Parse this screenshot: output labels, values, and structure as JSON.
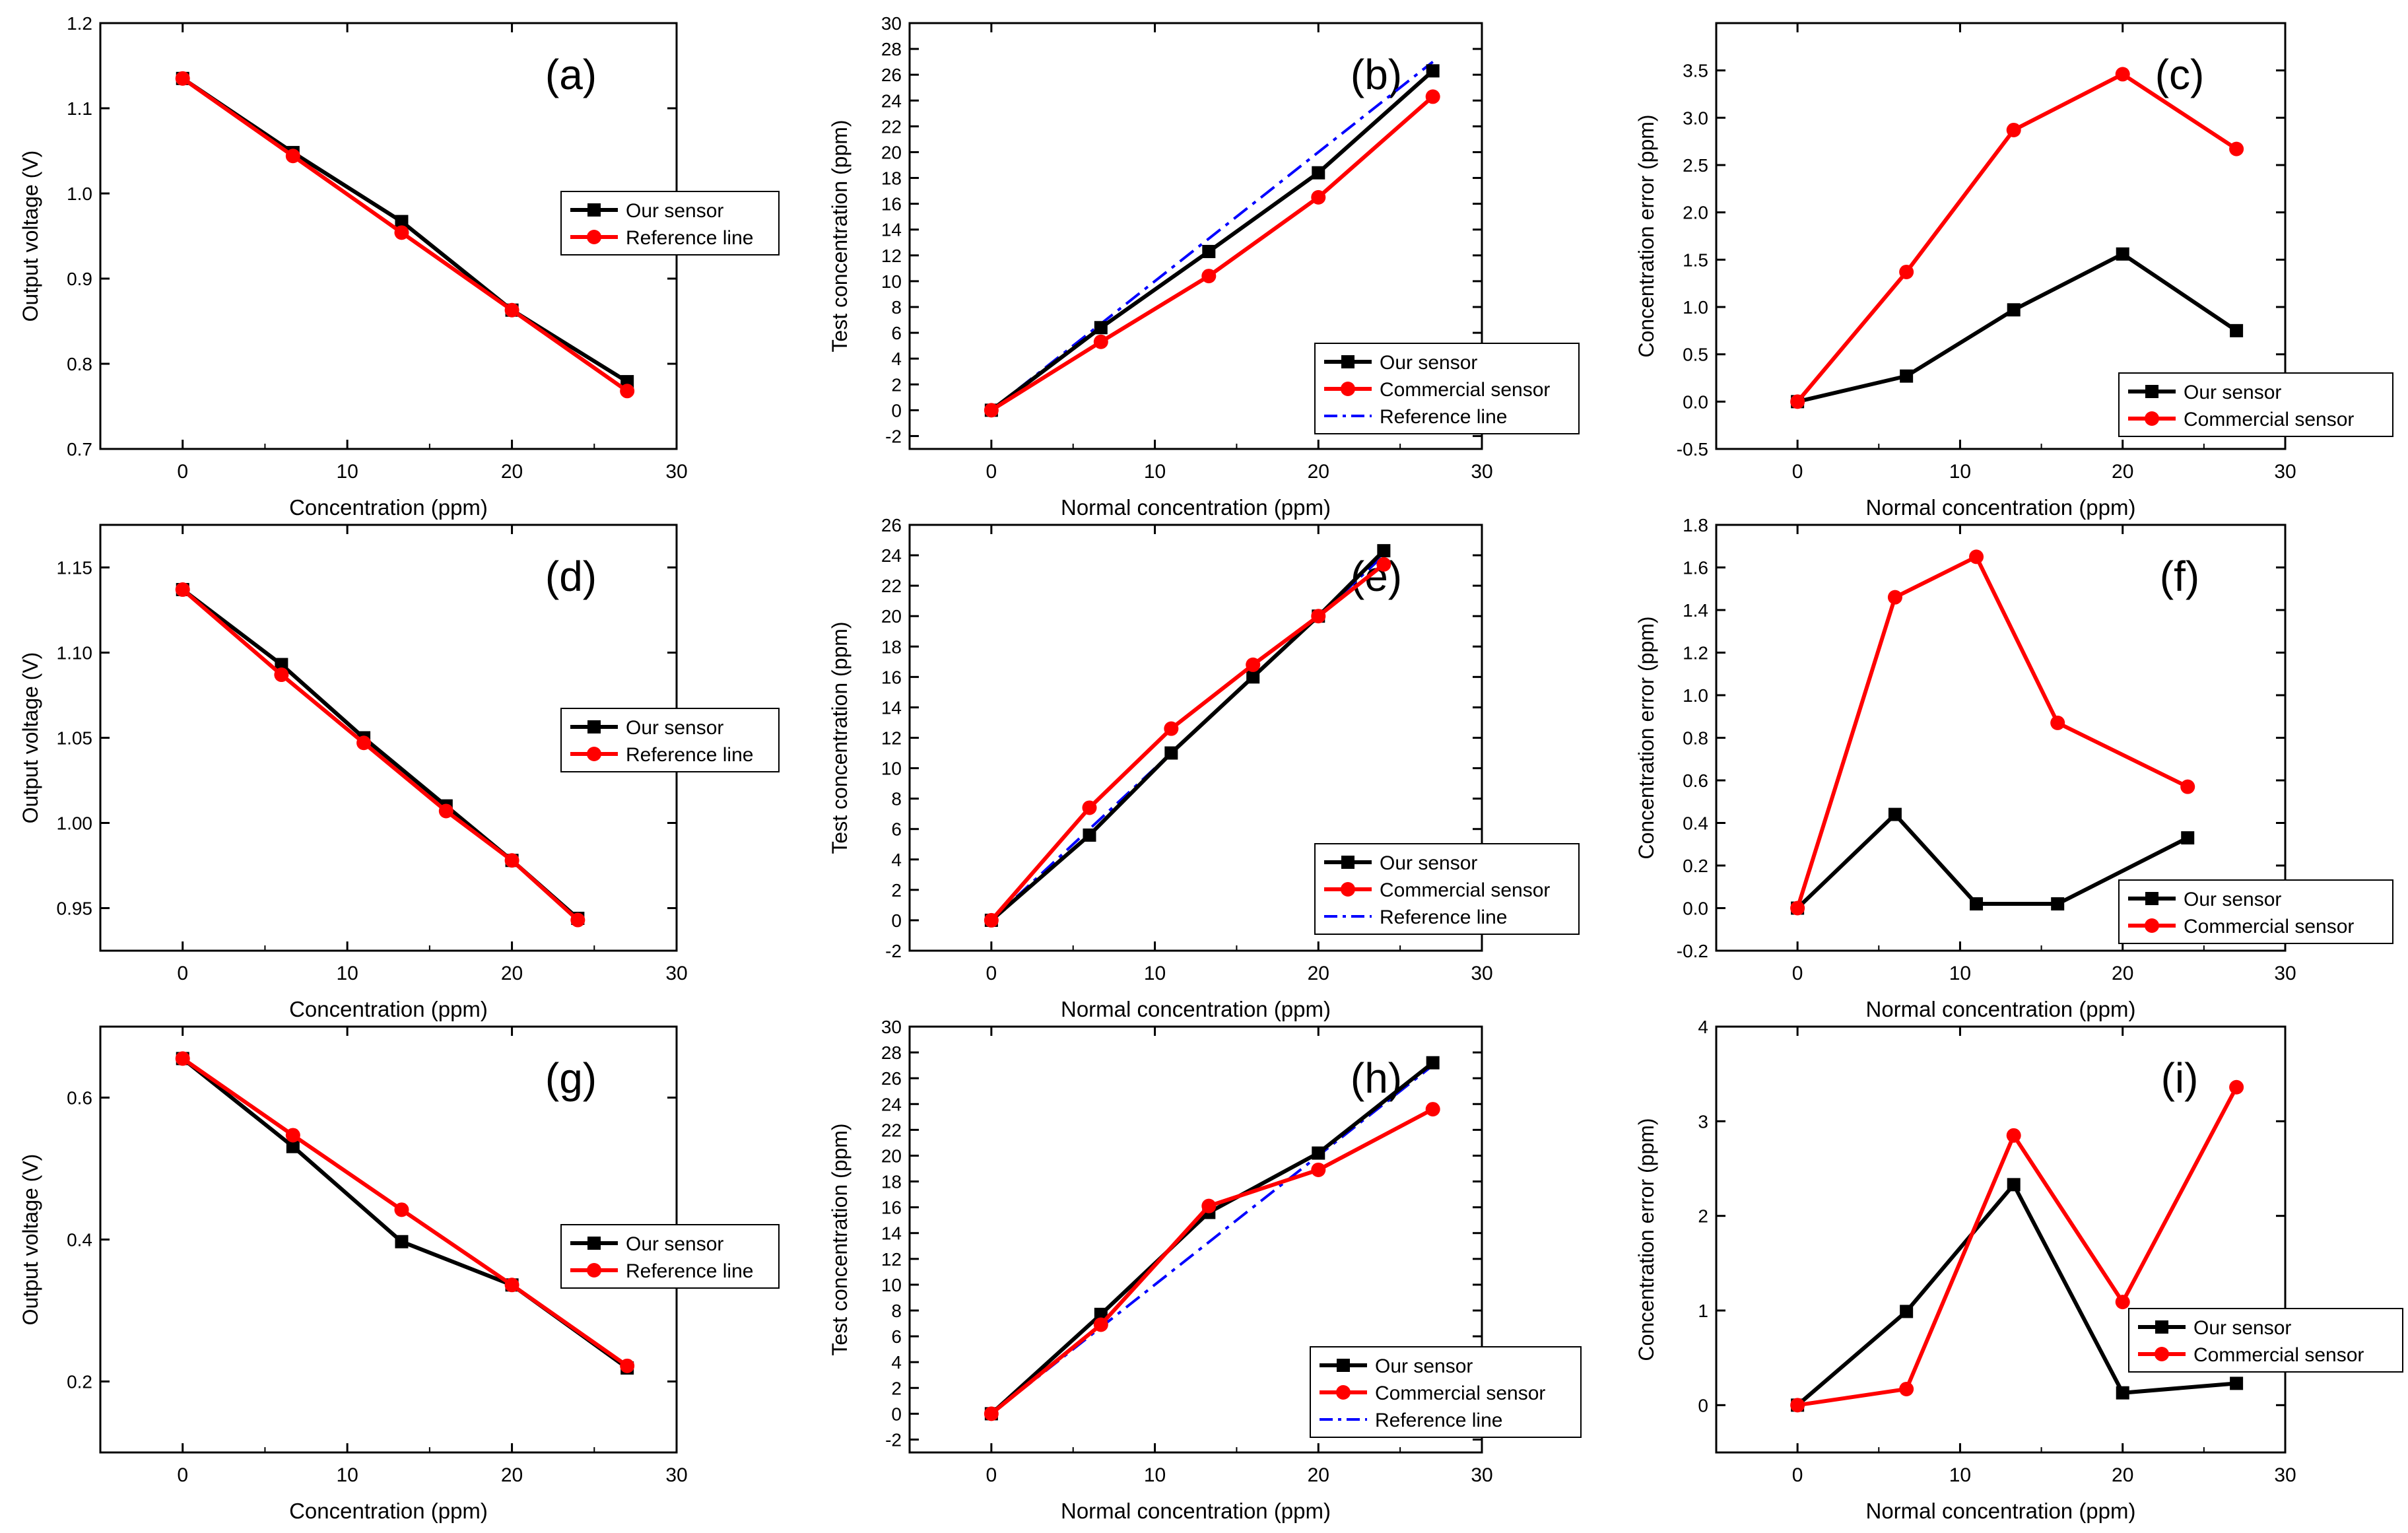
{
  "colors": {
    "black": "#000000",
    "red": "#ff0000",
    "blue": "#0000ff"
  },
  "chart_data": [
    {
      "type": "line",
      "panel": "(a)",
      "xlabel": "Concentration (ppm)",
      "ylabel": "Output voltage (V)",
      "xlim": [
        -5,
        30
      ],
      "ylim": [
        0.7,
        1.2
      ],
      "xticks": [
        "0",
        "10",
        "20",
        "30"
      ],
      "yticks": [
        "0.7",
        "0.8",
        "0.9",
        "1.0",
        "1.1",
        "1.2"
      ],
      "legend": "right",
      "series": [
        {
          "name": "Our sensor",
          "color": "#000000",
          "marker": "square",
          "x": [
            0,
            6.7,
            13.3,
            20,
            27
          ],
          "y": [
            1.135,
            1.048,
            0.967,
            0.863,
            0.779
          ]
        },
        {
          "name": "Reference line",
          "color": "#ff0000",
          "marker": "circle",
          "x": [
            0,
            6.7,
            13.3,
            20,
            27
          ],
          "y": [
            1.135,
            1.044,
            0.954,
            0.863,
            0.768
          ]
        }
      ]
    },
    {
      "type": "line",
      "panel": "(b)",
      "xlabel": "Normal concentration (ppm)",
      "ylabel": "Test concentration (ppm)",
      "xlim": [
        -5,
        30
      ],
      "ylim": [
        -3,
        30
      ],
      "xticks": [
        "0",
        "10",
        "20",
        "30"
      ],
      "yticks": [
        "-2",
        "0",
        "2",
        "4",
        "6",
        "8",
        "10",
        "12",
        "14",
        "16",
        "18",
        "20",
        "22",
        "24",
        "26",
        "28",
        "30"
      ],
      "legend": "bottom-right",
      "series": [
        {
          "name": "Our sensor",
          "color": "#000000",
          "marker": "square",
          "x": [
            0,
            6.7,
            13.3,
            20,
            27
          ],
          "y": [
            0,
            6.4,
            12.3,
            18.4,
            26.3
          ]
        },
        {
          "name": "Commercial sensor",
          "color": "#ff0000",
          "marker": "circle",
          "x": [
            0,
            6.7,
            13.3,
            20,
            27
          ],
          "y": [
            0,
            5.3,
            10.4,
            16.5,
            24.3
          ]
        },
        {
          "name": "Reference line",
          "color": "#0000ff",
          "dash": "dashdot",
          "x": [
            0,
            6.7,
            13.3,
            20,
            27
          ],
          "y": [
            0,
            6.7,
            13.3,
            20,
            27
          ]
        }
      ]
    },
    {
      "type": "line",
      "panel": "(c)",
      "xlabel": "Normal concentration (ppm)",
      "ylabel": "Concentration error (ppm)",
      "xlim": [
        -5,
        30
      ],
      "ylim": [
        -0.5,
        4.0
      ],
      "xticks": [
        "0",
        "10",
        "20",
        "30"
      ],
      "yticks": [
        "-0.5",
        "0.0",
        "0.5",
        "1.0",
        "1.5",
        "2.0",
        "2.5",
        "3.0",
        "3.5"
      ],
      "legend": "bottom-right",
      "series": [
        {
          "name": "Our sensor",
          "color": "#000000",
          "marker": "square",
          "x": [
            0,
            6.7,
            13.3,
            20,
            27
          ],
          "y": [
            0,
            0.27,
            0.97,
            1.56,
            0.75
          ]
        },
        {
          "name": "Commercial sensor",
          "color": "#ff0000",
          "marker": "circle",
          "x": [
            0,
            6.7,
            13.3,
            20,
            27
          ],
          "y": [
            0,
            1.37,
            2.87,
            3.46,
            2.67
          ]
        }
      ]
    },
    {
      "type": "line",
      "panel": "(d)",
      "xlabel": "Concentration (ppm)",
      "ylabel": "Output voltage (V)",
      "xlim": [
        -5,
        30
      ],
      "ylim": [
        0.925,
        1.175
      ],
      "xticks": [
        "0",
        "10",
        "20",
        "30"
      ],
      "yticks": [
        "0.95",
        "1.00",
        "1.05",
        "1.10",
        "1.15"
      ],
      "legend": "right",
      "series": [
        {
          "name": "Our sensor",
          "color": "#000000",
          "marker": "square",
          "x": [
            0,
            6,
            11,
            16,
            20,
            24
          ],
          "y": [
            1.137,
            1.093,
            1.05,
            1.01,
            0.978,
            0.944
          ]
        },
        {
          "name": "Reference line",
          "color": "#ff0000",
          "marker": "circle",
          "x": [
            0,
            6,
            11,
            16,
            20,
            24
          ],
          "y": [
            1.137,
            1.087,
            1.047,
            1.007,
            0.978,
            0.943
          ]
        }
      ]
    },
    {
      "type": "line",
      "panel": "(e)",
      "xlabel": "Normal concentration (ppm)",
      "ylabel": "Test concentration (ppm)",
      "xlim": [
        -5,
        30
      ],
      "ylim": [
        -2,
        26
      ],
      "xticks": [
        "0",
        "10",
        "20",
        "30"
      ],
      "yticks": [
        "-2",
        "0",
        "2",
        "4",
        "6",
        "8",
        "10",
        "12",
        "14",
        "16",
        "18",
        "20",
        "22",
        "24",
        "26"
      ],
      "legend": "bottom-right",
      "series": [
        {
          "name": "Our sensor",
          "color": "#000000",
          "marker": "square",
          "x": [
            0,
            6,
            11,
            16,
            20,
            24
          ],
          "y": [
            0,
            5.6,
            11.0,
            16.0,
            20.0,
            24.3
          ]
        },
        {
          "name": "Commercial sensor",
          "color": "#ff0000",
          "marker": "circle",
          "x": [
            0,
            6,
            11,
            16,
            20,
            24
          ],
          "y": [
            0,
            7.4,
            12.6,
            16.8,
            20.0,
            23.4
          ]
        },
        {
          "name": "Reference line",
          "color": "#0000ff",
          "dash": "dashdot",
          "x": [
            0,
            6,
            11,
            16,
            20,
            24
          ],
          "y": [
            0,
            6,
            11,
            16,
            20,
            24
          ]
        }
      ]
    },
    {
      "type": "line",
      "panel": "(f)",
      "xlabel": "Normal concentration (ppm)",
      "ylabel": "Concentration error (ppm)",
      "xlim": [
        -5,
        30
      ],
      "ylim": [
        -0.2,
        1.8
      ],
      "xticks": [
        "0",
        "10",
        "20",
        "30"
      ],
      "yticks": [
        "-0.2",
        "0.0",
        "0.2",
        "0.4",
        "0.6",
        "0.8",
        "1.0",
        "1.2",
        "1.4",
        "1.6",
        "1.8"
      ],
      "legend": "bottom-right",
      "series": [
        {
          "name": "Our sensor",
          "color": "#000000",
          "marker": "square",
          "x": [
            0,
            6,
            11,
            16,
            24
          ],
          "y": [
            0,
            0.44,
            0.02,
            0.02,
            0.33
          ]
        },
        {
          "name": "Commercial sensor",
          "color": "#ff0000",
          "marker": "circle",
          "x": [
            0,
            6,
            11,
            16,
            24
          ],
          "y": [
            0,
            1.46,
            1.65,
            0.87,
            0.57
          ]
        }
      ]
    },
    {
      "type": "line",
      "panel": "(g)",
      "xlabel": "Concentration (ppm)",
      "ylabel": "Output voltage (V)",
      "xlim": [
        -5,
        30
      ],
      "ylim": [
        0.1,
        0.7
      ],
      "xticks": [
        "0",
        "10",
        "20",
        "30"
      ],
      "yticks": [
        "0.2",
        "0.4",
        "0.6"
      ],
      "legend": "right",
      "series": [
        {
          "name": "Our sensor",
          "color": "#000000",
          "marker": "square",
          "x": [
            0,
            6.7,
            13.3,
            20,
            27
          ],
          "y": [
            0.655,
            0.531,
            0.397,
            0.336,
            0.219
          ]
        },
        {
          "name": "Reference line",
          "color": "#ff0000",
          "marker": "circle",
          "x": [
            0,
            6.7,
            13.3,
            20,
            27
          ],
          "y": [
            0.655,
            0.547,
            0.442,
            0.336,
            0.222
          ]
        }
      ]
    },
    {
      "type": "line",
      "panel": "(h)",
      "xlabel": "Normal concentration (ppm)",
      "ylabel": "Test concentration (ppm)",
      "xlim": [
        -5,
        30
      ],
      "ylim": [
        -3,
        30
      ],
      "xticks": [
        "0",
        "10",
        "20",
        "30"
      ],
      "yticks": [
        "-2",
        "0",
        "2",
        "4",
        "6",
        "8",
        "10",
        "12",
        "14",
        "16",
        "18",
        "20",
        "22",
        "24",
        "26",
        "28",
        "30"
      ],
      "legend": "bottom-right",
      "series": [
        {
          "name": "Our sensor",
          "color": "#000000",
          "marker": "square",
          "x": [
            0,
            6.7,
            13.3,
            20,
            27
          ],
          "y": [
            0,
            7.7,
            15.6,
            20.2,
            27.2
          ]
        },
        {
          "name": "Commercial sensor",
          "color": "#ff0000",
          "marker": "circle",
          "x": [
            0,
            6.7,
            13.3,
            20,
            27
          ],
          "y": [
            0,
            6.9,
            16.1,
            18.9,
            23.6
          ]
        },
        {
          "name": "Reference line",
          "color": "#0000ff",
          "dash": "dashdot",
          "x": [
            0,
            6.7,
            13.3,
            20,
            27
          ],
          "y": [
            0,
            6.7,
            13.3,
            20,
            27
          ]
        }
      ]
    },
    {
      "type": "line",
      "panel": "(i)",
      "xlabel": "Normal concentration (ppm)",
      "ylabel": "Concentration error (ppm)",
      "xlim": [
        -5,
        30
      ],
      "ylim": [
        -0.5,
        4
      ],
      "xticks": [
        "0",
        "10",
        "20",
        "30"
      ],
      "yticks": [
        "0",
        "1",
        "2",
        "3",
        "4"
      ],
      "legend": "bottom-right",
      "series": [
        {
          "name": "Our sensor",
          "color": "#000000",
          "marker": "square",
          "x": [
            0,
            6.7,
            13.3,
            20,
            27
          ],
          "y": [
            0,
            0.99,
            2.33,
            0.13,
            0.23
          ]
        },
        {
          "name": "Commercial sensor",
          "color": "#ff0000",
          "marker": "circle",
          "x": [
            0,
            6.7,
            13.3,
            20,
            27
          ],
          "y": [
            0,
            0.17,
            2.85,
            1.09,
            3.36
          ]
        }
      ]
    }
  ]
}
